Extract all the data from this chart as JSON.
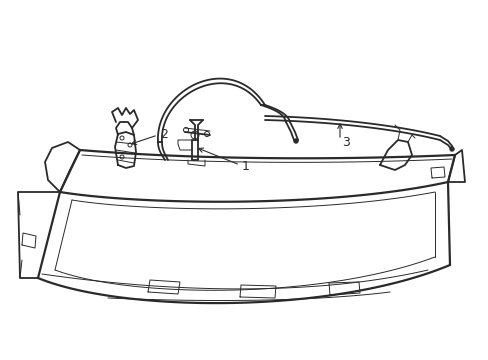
{
  "bg_color": "#ffffff",
  "line_color": "#2a2a2a",
  "lw_main": 1.3,
  "lw_thin": 0.7,
  "lw_thick": 1.6,
  "label_1": "1",
  "label_2": "2",
  "label_3": "3",
  "label_fontsize": 9,
  "figsize": [
    4.89,
    3.6
  ],
  "dpi": 100
}
